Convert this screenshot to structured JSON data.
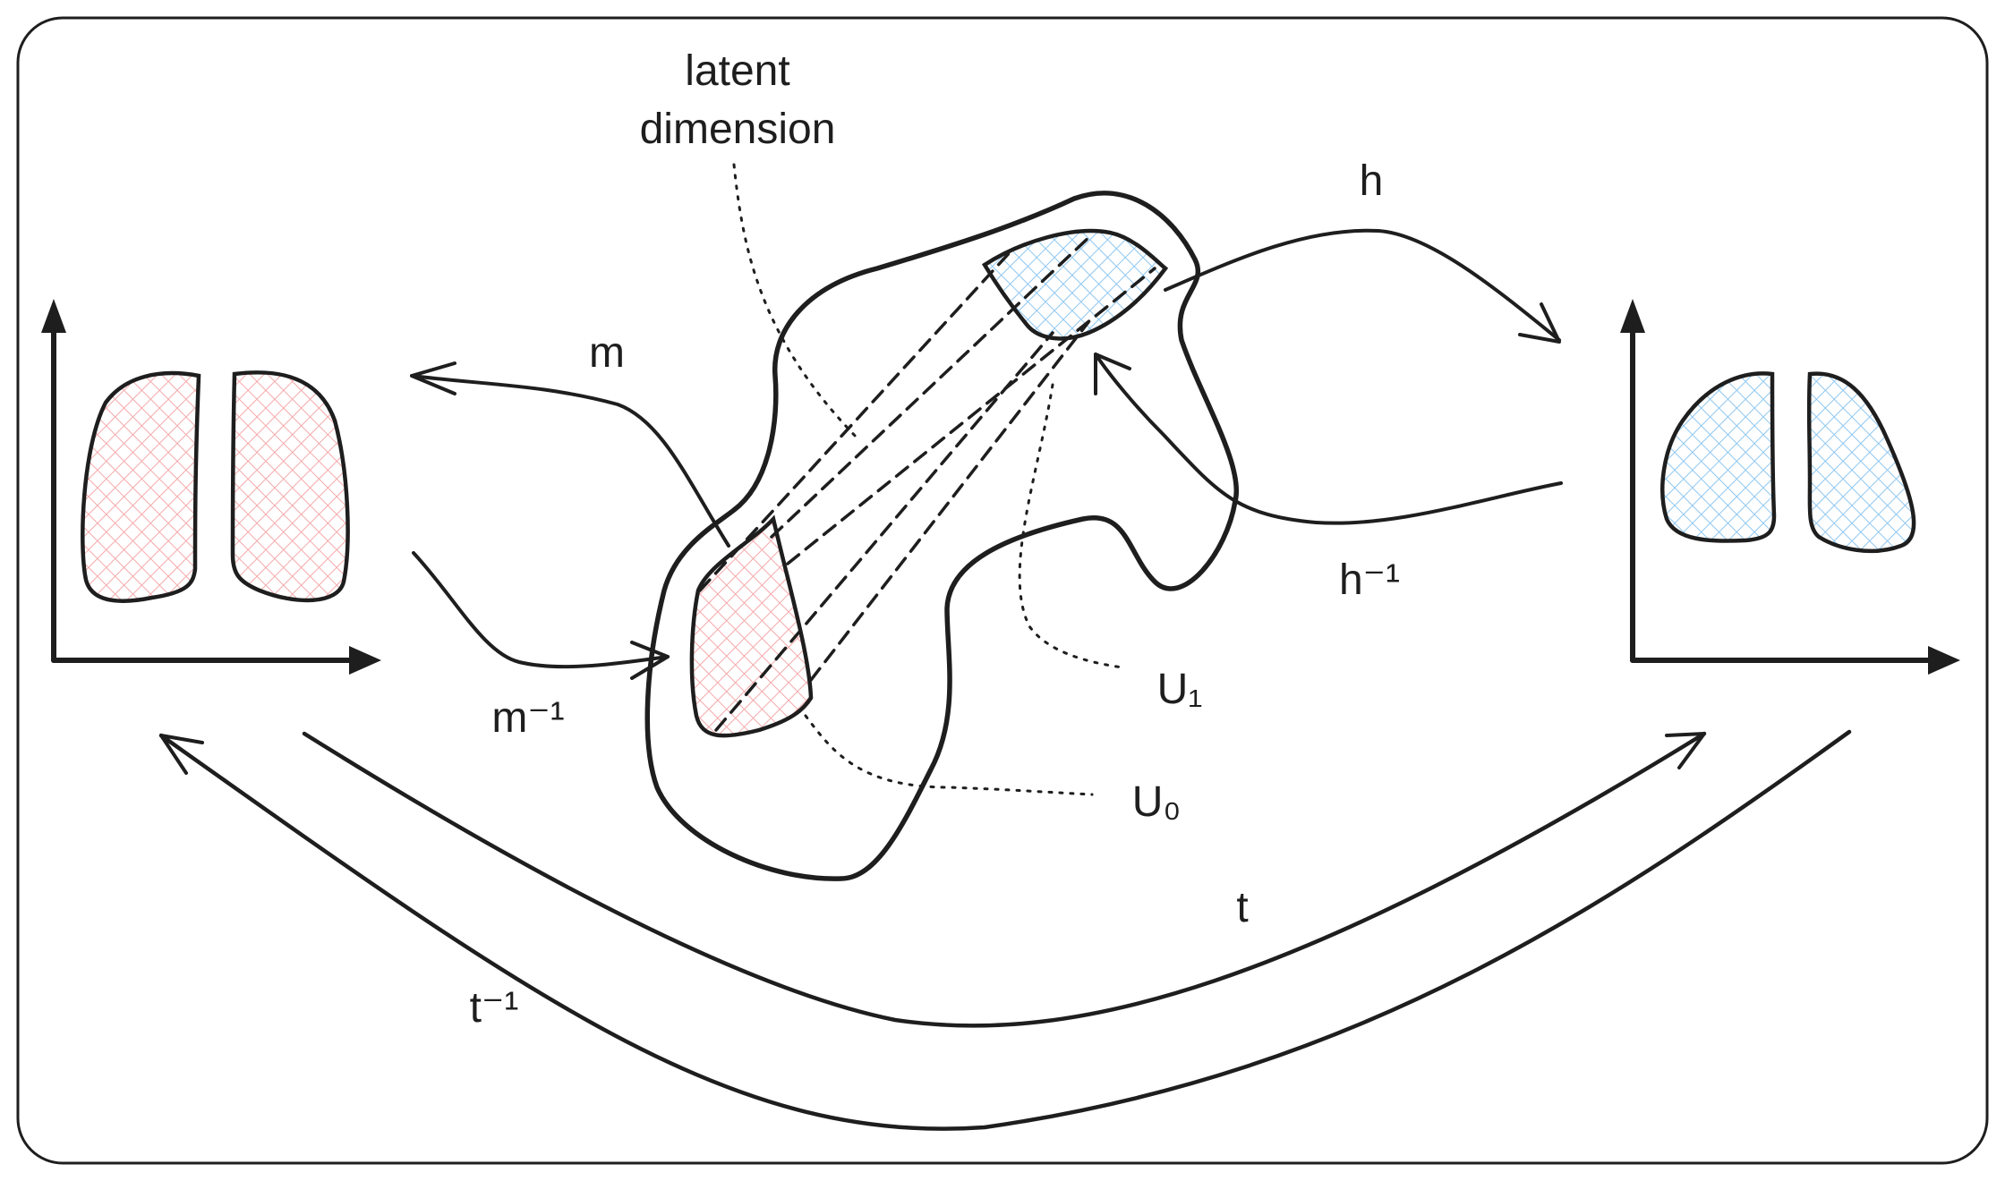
{
  "labels": {
    "latent_line1": "latent",
    "latent_line2": "dimension",
    "m": "m",
    "m_inv": "m⁻¹",
    "h": "h",
    "h_inv": "h⁻¹",
    "u1": "U₁",
    "u0": "U₀",
    "t": "t",
    "t_inv": "t⁻¹"
  },
  "colors": {
    "ink": "#1e1e1e",
    "red_hatch": "#f4a9ab",
    "blue_hatch": "#8fc7f0",
    "background": "#ffffff"
  }
}
